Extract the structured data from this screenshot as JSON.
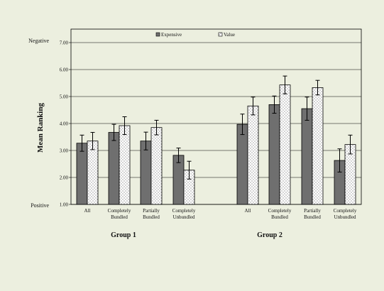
{
  "colors": {
    "background": "#ecefdf",
    "expensive_bar": "#6f6f6f",
    "value_bar": "#ffffff",
    "gridline": "#000000"
  },
  "chart_data": {
    "type": "bar",
    "ylabel": "Mean Ranking",
    "ylim": [
      1,
      7
    ],
    "yticks": [
      "1.00",
      "2.00",
      "3.00",
      "4.00",
      "5.00",
      "6.00",
      "7.00"
    ],
    "y_end_labels": {
      "top": "Negative",
      "bottom": "Positive"
    },
    "grid": true,
    "legend_position": "top-center",
    "categories": [
      "All",
      "Completely Bundled",
      "Partially Bundled",
      "Completely Unbundled",
      "All",
      "Completely Bundled",
      "Partially Bundled",
      "Completely Unbundled"
    ],
    "groups": [
      {
        "label": "Group 1",
        "categories": [
          "All",
          "Completely\nBundled",
          "Partially\nBundled",
          "Completely\nUnbundled"
        ]
      },
      {
        "label": "Group 2",
        "categories": [
          "All",
          "Completely\nBundled",
          "Partially\nBundled",
          "Completely\nUnbundled"
        ]
      }
    ],
    "series": [
      {
        "name": "Expensive",
        "pattern": "solid-gray",
        "values": [
          3.27,
          3.67,
          3.35,
          2.82,
          3.97,
          4.7,
          4.55,
          2.63
        ],
        "error": [
          0.3,
          0.3,
          0.33,
          0.27,
          0.38,
          0.32,
          0.43,
          0.43
        ]
      },
      {
        "name": "Value",
        "pattern": "dotted-white",
        "values": [
          3.35,
          3.92,
          3.85,
          2.27,
          4.65,
          5.43,
          5.33,
          3.22
        ],
        "error": [
          0.32,
          0.33,
          0.27,
          0.33,
          0.33,
          0.33,
          0.27,
          0.35
        ]
      }
    ]
  }
}
